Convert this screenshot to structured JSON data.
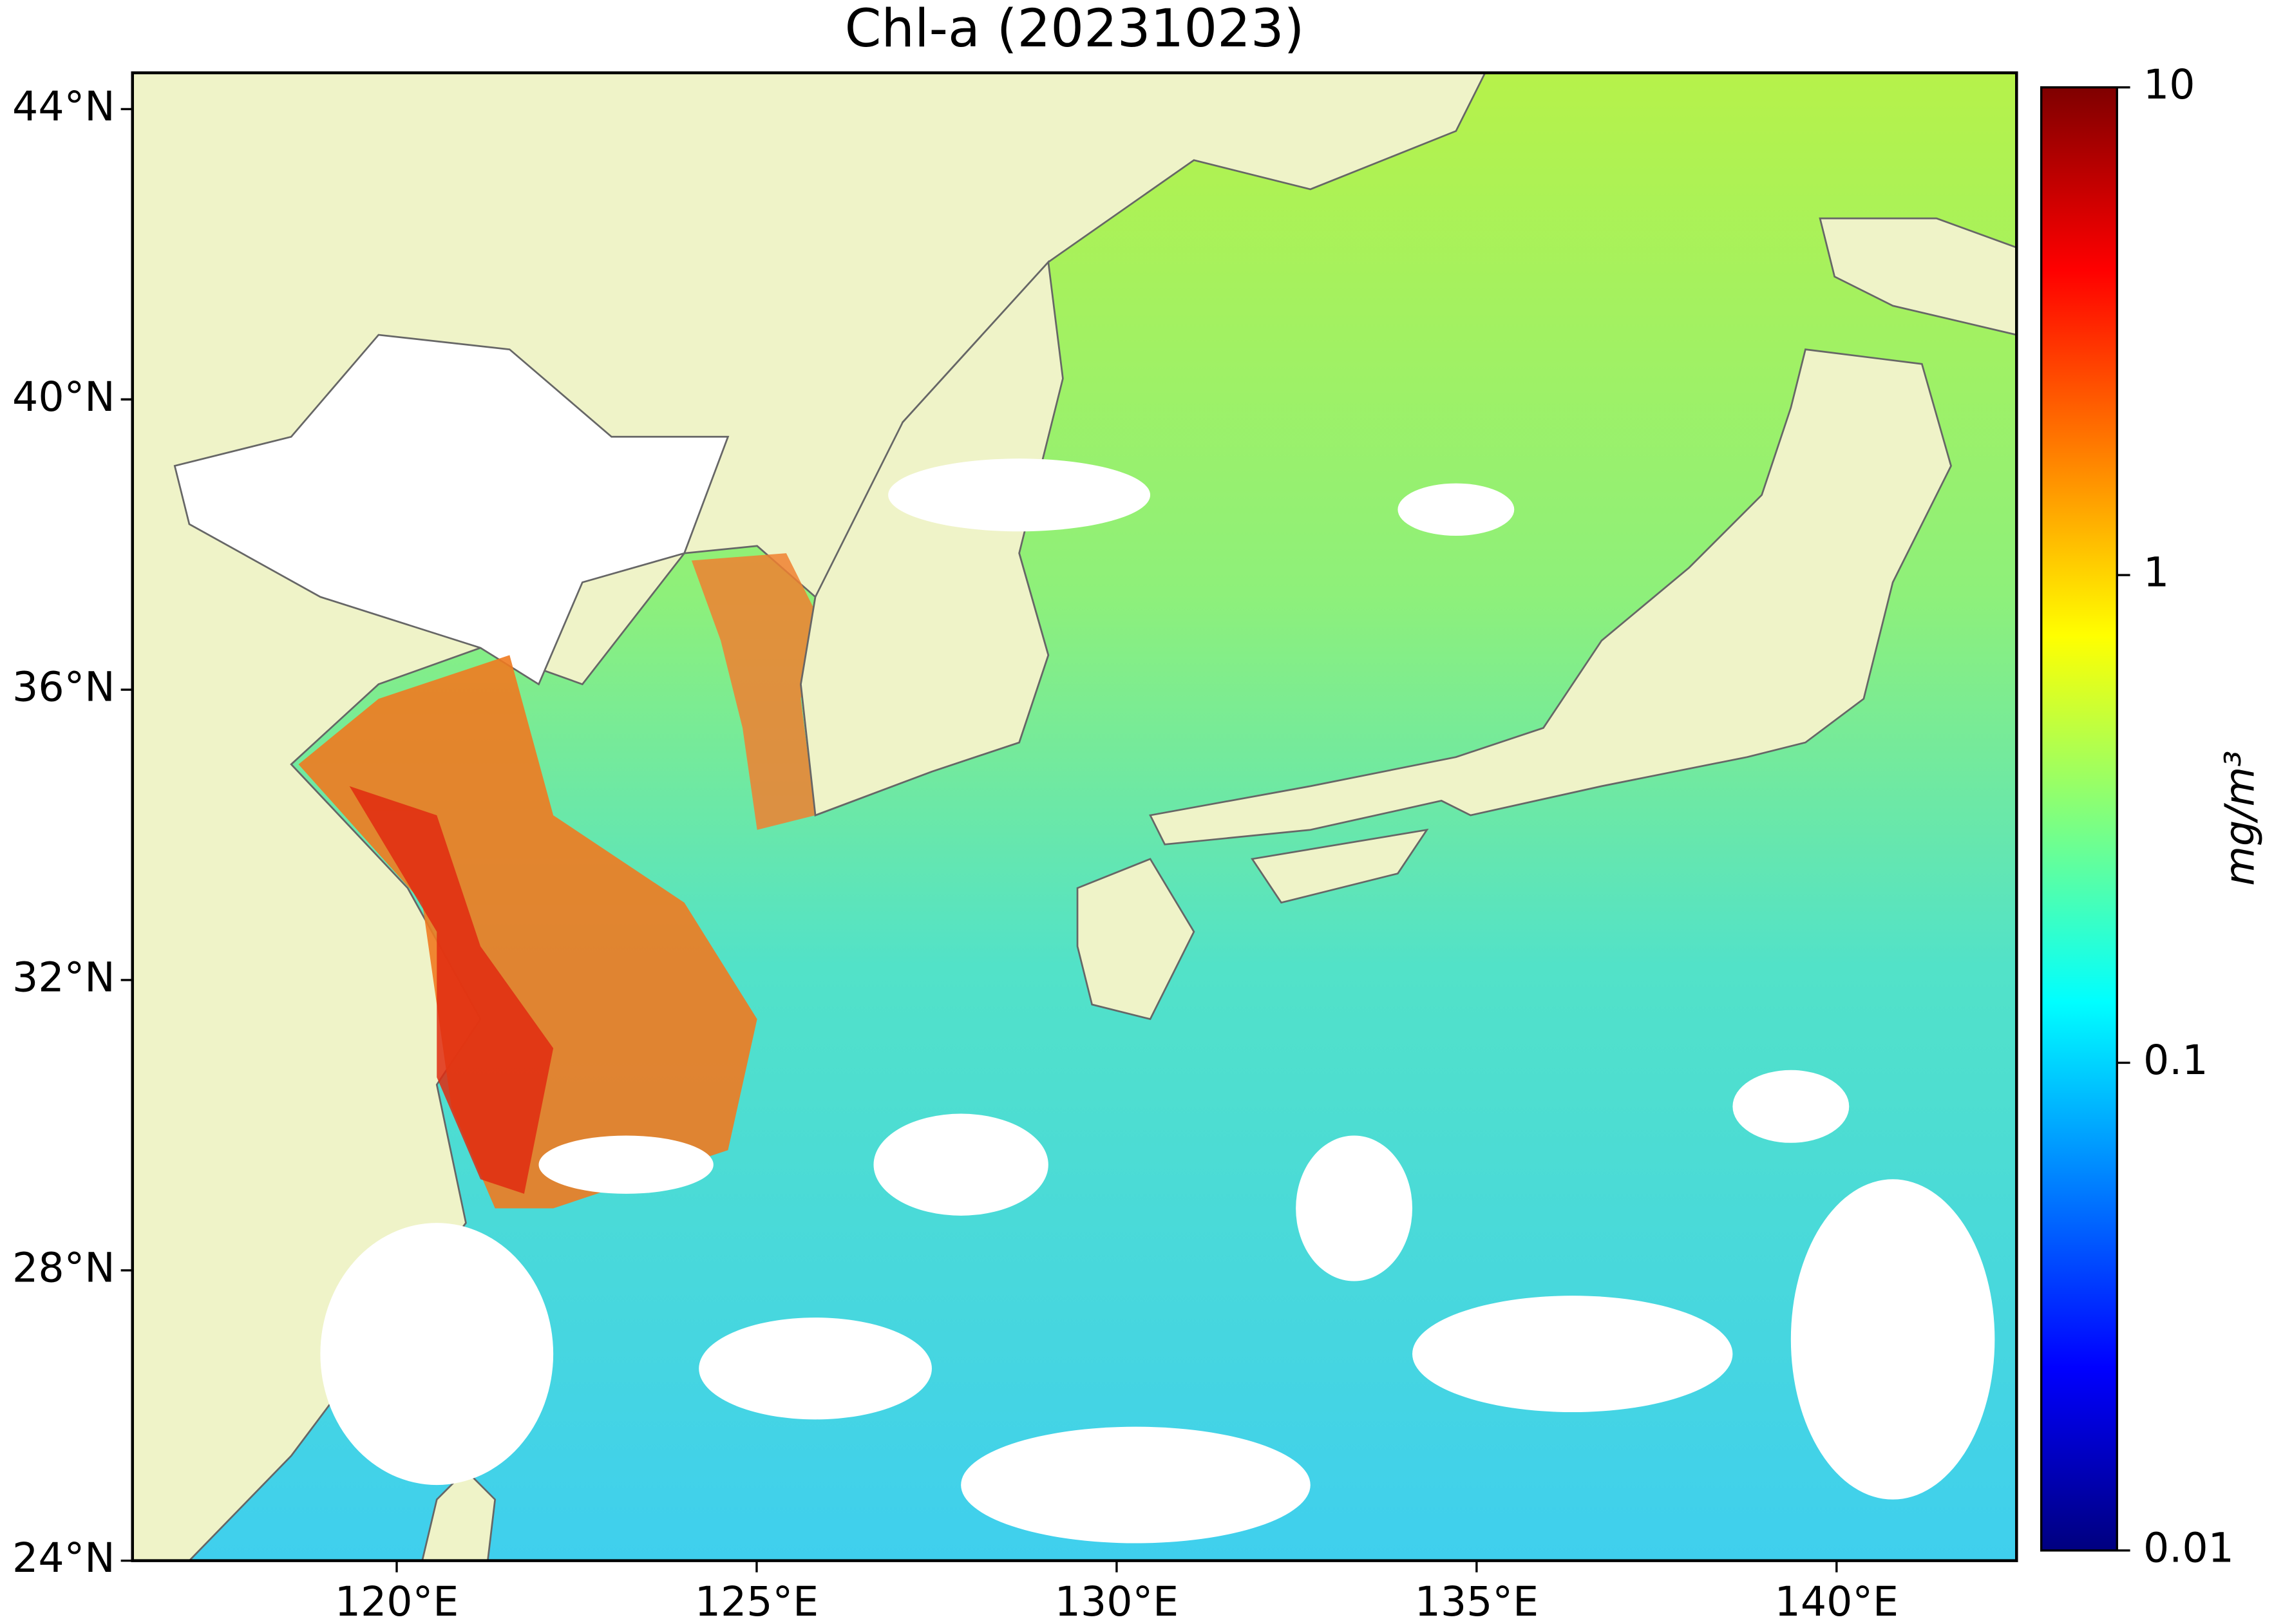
{
  "map": {
    "title": "Chl-a (20231023)",
    "xlim": [
      116.33,
      142.5
    ],
    "ylim": [
      24,
      44.5
    ],
    "xticks": [
      {
        "value": 120,
        "label": "120°E"
      },
      {
        "value": 125,
        "label": "125°E"
      },
      {
        "value": 130,
        "label": "130°E"
      },
      {
        "value": 135,
        "label": "135°E"
      },
      {
        "value": 140,
        "label": "140°E"
      }
    ],
    "yticks": [
      {
        "value": 24,
        "label": "24°N"
      },
      {
        "value": 28,
        "label": "28°N"
      },
      {
        "value": 32,
        "label": "32°N"
      },
      {
        "value": 36,
        "label": "36°N"
      },
      {
        "value": 40,
        "label": "40°N"
      },
      {
        "value": 44,
        "label": "44°N"
      }
    ],
    "colorbar": {
      "label": "mg/m³",
      "log_scale": true,
      "lim": [
        0.01,
        10
      ],
      "ticks": [
        0.01,
        0.1,
        1,
        10
      ],
      "colors": [
        "#00007f",
        "#0000ff",
        "#007fff",
        "#00ffff",
        "#7fff7f",
        "#ffff00",
        "#ff7f00",
        "#ff0000",
        "#7f0000"
      ]
    }
  }
}
